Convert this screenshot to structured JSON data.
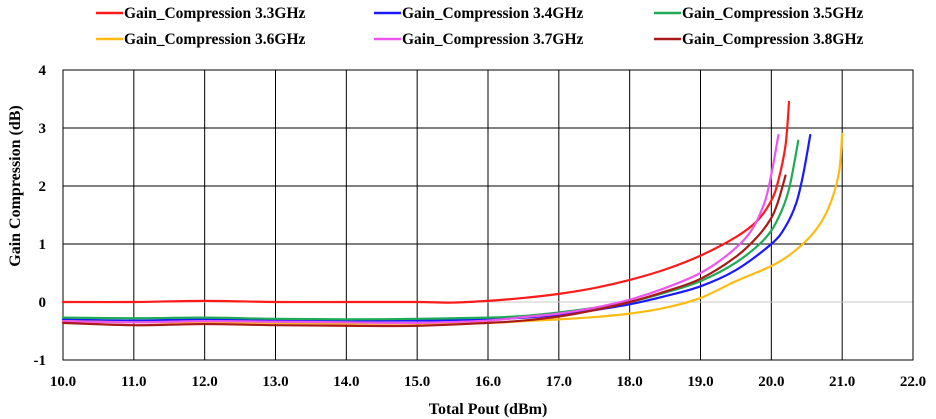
{
  "chart_data": {
    "type": "line",
    "title": "",
    "xlabel": "Total Pout (dBm)",
    "ylabel": "Gain Compression (dB)",
    "xlim": [
      10.0,
      22.0
    ],
    "ylim": [
      -1,
      4
    ],
    "x_ticks": [
      "10.0",
      "11.0",
      "12.0",
      "13.0",
      "14.0",
      "15.0",
      "16.0",
      "17.0",
      "18.0",
      "19.0",
      "20.0",
      "21.0",
      "22.0"
    ],
    "y_ticks": [
      "-1",
      "0",
      "1",
      "2",
      "3",
      "4"
    ],
    "grid": true,
    "legend_position": "top",
    "series": [
      {
        "name": "Gain_Compression 3.3GHz",
        "color": "#ff1a1a",
        "x": [
          10.0,
          11.0,
          12.0,
          13.0,
          14.0,
          15.0,
          15.5,
          16.0,
          16.5,
          17.0,
          17.5,
          18.0,
          18.5,
          19.0,
          19.5,
          19.8,
          20.0,
          20.1,
          20.2,
          20.25
        ],
        "y": [
          0.0,
          0.0,
          0.02,
          0.0,
          0.0,
          0.0,
          -0.01,
          0.02,
          0.07,
          0.14,
          0.24,
          0.38,
          0.56,
          0.8,
          1.12,
          1.4,
          1.75,
          2.1,
          2.7,
          3.45
        ]
      },
      {
        "name": "Gain_Compression 3.4GHz",
        "color": "#1a1aff",
        "x": [
          10.0,
          11.0,
          12.0,
          13.0,
          14.0,
          15.0,
          16.0,
          16.5,
          17.0,
          17.5,
          18.0,
          18.5,
          19.0,
          19.5,
          20.0,
          20.2,
          20.35,
          20.45,
          20.55
        ],
        "y": [
          -0.3,
          -0.32,
          -0.3,
          -0.32,
          -0.32,
          -0.32,
          -0.3,
          -0.27,
          -0.22,
          -0.14,
          -0.04,
          0.1,
          0.27,
          0.55,
          1.0,
          1.3,
          1.7,
          2.2,
          2.88
        ]
      },
      {
        "name": "Gain_Compression 3.5GHz",
        "color": "#1faa55",
        "x": [
          10.0,
          11.0,
          12.0,
          13.0,
          14.0,
          15.0,
          16.0,
          16.5,
          17.0,
          17.5,
          18.0,
          18.5,
          19.0,
          19.5,
          19.9,
          20.1,
          20.25,
          20.38
        ],
        "y": [
          -0.27,
          -0.28,
          -0.27,
          -0.29,
          -0.3,
          -0.29,
          -0.27,
          -0.24,
          -0.18,
          -0.1,
          0.0,
          0.16,
          0.36,
          0.68,
          1.08,
          1.45,
          1.95,
          2.78
        ]
      },
      {
        "name": "Gain_Compression 3.6GHz",
        "color": "#ffbb11",
        "x": [
          10.0,
          11.0,
          12.0,
          13.0,
          14.0,
          15.0,
          16.0,
          16.5,
          17.0,
          17.5,
          18.0,
          18.5,
          19.0,
          19.5,
          20.0,
          20.3,
          20.6,
          20.8,
          20.95,
          21.0
        ],
        "y": [
          -0.33,
          -0.35,
          -0.35,
          -0.36,
          -0.37,
          -0.37,
          -0.36,
          -0.33,
          -0.3,
          -0.26,
          -0.2,
          -0.1,
          0.07,
          0.36,
          0.62,
          0.85,
          1.2,
          1.6,
          2.2,
          2.9
        ]
      },
      {
        "name": "Gain_Compression 3.7GHz",
        "color": "#ee55ee",
        "x": [
          10.0,
          11.0,
          12.0,
          13.0,
          14.0,
          15.0,
          16.0,
          16.5,
          17.0,
          17.5,
          18.0,
          18.5,
          19.0,
          19.4,
          19.7,
          19.9,
          20.0,
          20.1
        ],
        "y": [
          -0.33,
          -0.35,
          -0.33,
          -0.34,
          -0.35,
          -0.36,
          -0.32,
          -0.26,
          -0.2,
          -0.1,
          0.04,
          0.24,
          0.5,
          0.83,
          1.2,
          1.7,
          2.2,
          2.88
        ]
      },
      {
        "name": "Gain_Compression 3.8GHz",
        "color": "#aa1a1a",
        "x": [
          10.0,
          11.0,
          12.0,
          13.0,
          14.0,
          15.0,
          16.0,
          16.5,
          17.0,
          17.5,
          18.0,
          18.5,
          19.0,
          19.5,
          19.8,
          20.0,
          20.1,
          20.2
        ],
        "y": [
          -0.36,
          -0.4,
          -0.38,
          -0.4,
          -0.41,
          -0.41,
          -0.36,
          -0.32,
          -0.25,
          -0.14,
          0.0,
          0.18,
          0.4,
          0.78,
          1.12,
          1.45,
          1.75,
          2.18
        ]
      }
    ]
  }
}
